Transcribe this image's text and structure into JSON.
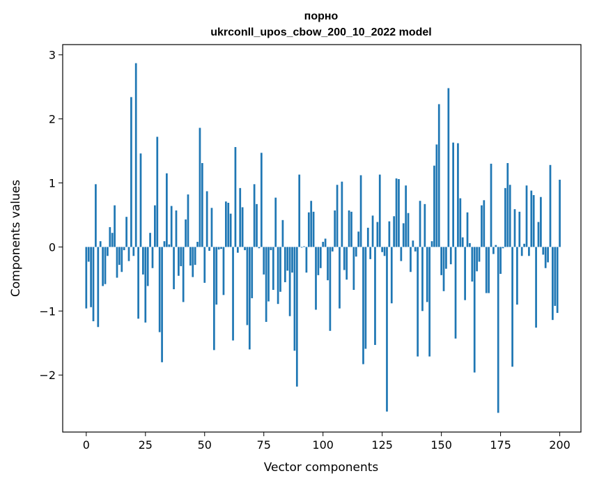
{
  "chart_data": {
    "type": "bar",
    "title_line1": "порно",
    "title_line2": "ukrconll_upos_cbow_200_10_2022 model",
    "xlabel": "Vector components",
    "ylabel": "Components values",
    "xlim": [
      -9.95,
      208.95
    ],
    "ylim": [
      -2.89,
      3.16
    ],
    "xticks": [
      0,
      25,
      50,
      75,
      100,
      125,
      150,
      175,
      200
    ],
    "yticks": [
      -2,
      -1,
      0,
      1,
      2,
      3
    ],
    "xtick_labels": [
      "0",
      "25",
      "50",
      "75",
      "100",
      "125",
      "150",
      "175",
      "200"
    ],
    "ytick_labels": [
      "−2",
      "−1",
      "0",
      "1",
      "2",
      "3"
    ],
    "bar_color": "#1f77b4",
    "grid": false,
    "values": [
      -0.96,
      -0.23,
      -0.94,
      -1.16,
      0.98,
      -1.25,
      0.09,
      -0.61,
      -0.58,
      -0.14,
      0.31,
      0.22,
      0.65,
      -0.48,
      -0.28,
      -0.39,
      -0.05,
      0.47,
      -0.22,
      2.34,
      -0.14,
      2.87,
      -1.12,
      1.46,
      -0.43,
      -1.18,
      -0.61,
      0.22,
      -0.33,
      0.65,
      1.72,
      -1.33,
      -1.8,
      0.09,
      1.15,
      0.04,
      0.64,
      -0.66,
      0.57,
      -0.45,
      -0.3,
      -0.86,
      0.43,
      0.82,
      -0.29,
      -0.47,
      -0.28,
      0.08,
      1.86,
      1.31,
      -0.56,
      0.87,
      -0.06,
      0.61,
      -1.61,
      -0.9,
      -0.04,
      -0.03,
      -0.75,
      0.71,
      0.69,
      0.52,
      -1.46,
      1.56,
      -0.09,
      0.92,
      0.62,
      -0.05,
      -1.22,
      -1.6,
      -0.8,
      0.98,
      0.67,
      -0.02,
      1.47,
      -0.43,
      -1.17,
      -0.85,
      -0.05,
      -0.67,
      0.77,
      -0.89,
      -0.7,
      0.42,
      -0.55,
      -0.37,
      -1.08,
      -0.4,
      -1.62,
      -2.18,
      1.13,
      -0.01,
      0.01,
      -0.4,
      0.54,
      0.72,
      0.55,
      -0.98,
      -0.44,
      -0.33,
      0.08,
      0.13,
      -0.52,
      -1.31,
      -0.07,
      0.57,
      0.97,
      -0.96,
      1.02,
      -0.36,
      -0.51,
      0.57,
      0.55,
      -0.67,
      -0.15,
      0.24,
      1.12,
      -1.83,
      -1.59,
      0.3,
      -0.19,
      0.49,
      -1.53,
      0.39,
      1.13,
      -0.08,
      -0.14,
      -2.57,
      0.4,
      -0.88,
      0.48,
      1.07,
      1.06,
      -0.22,
      0.37,
      0.96,
      0.53,
      -0.39,
      0.1,
      -0.07,
      -1.71,
      0.72,
      -1.0,
      0.67,
      -0.86,
      -1.71,
      0.09,
      1.27,
      1.6,
      2.23,
      -0.44,
      -0.69,
      -0.34,
      2.48,
      -0.27,
      1.63,
      -1.43,
      1.62,
      0.76,
      0.15,
      -0.83,
      0.54,
      0.06,
      -0.54,
      -1.96,
      -0.38,
      -0.23,
      0.65,
      0.73,
      -0.72,
      -0.72,
      1.3,
      -0.11,
      0.03,
      -2.59,
      -0.42,
      -0.02,
      0.92,
      1.31,
      0.97,
      -1.87,
      0.59,
      -0.9,
      0.55,
      -0.14,
      0.05,
      0.96,
      -0.14,
      0.88,
      0.81,
      -1.26,
      0.39,
      0.78,
      -0.12,
      -0.33,
      -0.24,
      1.28,
      -1.14,
      -0.92,
      -1.03,
      1.05
    ]
  }
}
